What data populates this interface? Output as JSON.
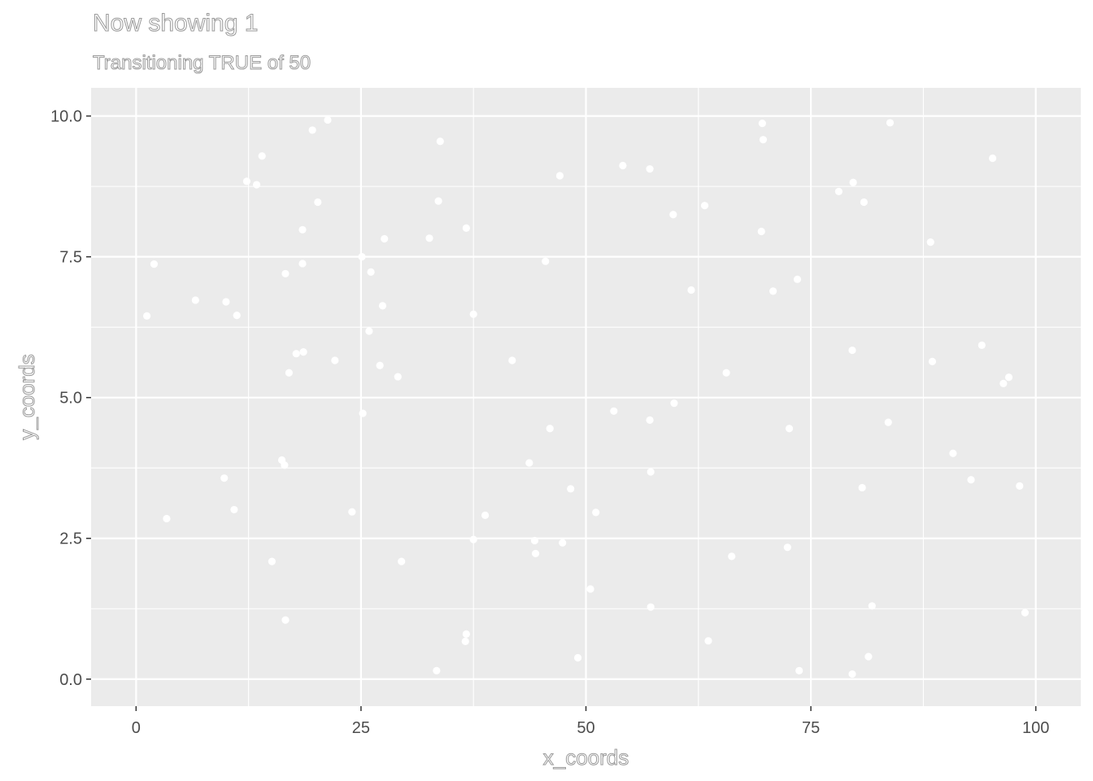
{
  "chart_data": {
    "type": "scatter",
    "title": "Now showing 1",
    "subtitle": "Transitioning TRUE of 50",
    "xlabel": "x_coords",
    "ylabel": "y_coords",
    "xlim": [
      -5,
      105
    ],
    "ylim": [
      -0.48,
      10.5
    ],
    "xticks": [
      0,
      25,
      50,
      75,
      100
    ],
    "xtick_labels": [
      "0",
      "25",
      "50",
      "75",
      "100"
    ],
    "yticks": [
      0,
      2.5,
      5,
      7.5,
      10
    ],
    "ytick_labels": [
      "0.0",
      "2.5",
      "5.0",
      "7.5",
      "10.0"
    ],
    "grid": true,
    "colors": {
      "panel": "#ebebeb",
      "grid": "#ffffff",
      "point": "#ffffff",
      "axis_text": "#4d4d4d"
    },
    "series": [
      {
        "points": [
          [
            1.2,
            6.45
          ],
          [
            2.0,
            7.37
          ],
          [
            3.4,
            2.85
          ],
          [
            6.6,
            6.73
          ],
          [
            9.8,
            3.57
          ],
          [
            10.0,
            6.7
          ],
          [
            10.9,
            3.01
          ],
          [
            11.2,
            6.46
          ],
          [
            12.3,
            8.84
          ],
          [
            13.4,
            8.78
          ],
          [
            14.0,
            9.29
          ],
          [
            15.1,
            2.09
          ],
          [
            16.2,
            3.89
          ],
          [
            16.5,
            3.8
          ],
          [
            16.6,
            7.2
          ],
          [
            16.6,
            1.05
          ],
          [
            17.0,
            5.44
          ],
          [
            17.8,
            5.78
          ],
          [
            18.5,
            7.98
          ],
          [
            18.5,
            7.38
          ],
          [
            18.6,
            5.81
          ],
          [
            19.6,
            9.75
          ],
          [
            20.2,
            8.47
          ],
          [
            21.3,
            9.93
          ],
          [
            22.1,
            5.66
          ],
          [
            24.0,
            2.97
          ],
          [
            25.1,
            7.5
          ],
          [
            25.2,
            4.72
          ],
          [
            25.9,
            6.18
          ],
          [
            26.1,
            7.23
          ],
          [
            27.1,
            5.57
          ],
          [
            27.4,
            6.63
          ],
          [
            27.6,
            7.82
          ],
          [
            29.1,
            5.37
          ],
          [
            29.5,
            2.09
          ],
          [
            32.6,
            7.83
          ],
          [
            33.4,
            0.15
          ],
          [
            33.6,
            8.49
          ],
          [
            33.8,
            9.55
          ],
          [
            36.6,
            0.67
          ],
          [
            36.7,
            0.8
          ],
          [
            36.7,
            8.01
          ],
          [
            37.5,
            6.48
          ],
          [
            37.5,
            2.48
          ],
          [
            38.8,
            2.91
          ],
          [
            41.8,
            5.66
          ],
          [
            43.7,
            3.84
          ],
          [
            44.3,
            2.46
          ],
          [
            44.4,
            2.23
          ],
          [
            45.5,
            7.42
          ],
          [
            46.0,
            4.45
          ],
          [
            47.1,
            8.94
          ],
          [
            47.4,
            2.42
          ],
          [
            48.3,
            3.38
          ],
          [
            49.1,
            0.38
          ],
          [
            50.5,
            1.6
          ],
          [
            51.1,
            2.96
          ],
          [
            53.1,
            4.76
          ],
          [
            54.1,
            9.12
          ],
          [
            57.1,
            9.06
          ],
          [
            57.1,
            4.6
          ],
          [
            57.2,
            3.68
          ],
          [
            57.2,
            1.28
          ],
          [
            59.7,
            8.25
          ],
          [
            59.8,
            4.9
          ],
          [
            61.7,
            6.91
          ],
          [
            63.2,
            8.41
          ],
          [
            63.6,
            0.68
          ],
          [
            65.6,
            5.44
          ],
          [
            66.2,
            2.18
          ],
          [
            69.5,
            7.95
          ],
          [
            69.6,
            9.87
          ],
          [
            69.7,
            9.58
          ],
          [
            70.8,
            6.89
          ],
          [
            72.4,
            2.34
          ],
          [
            72.6,
            4.45
          ],
          [
            73.5,
            7.1
          ],
          [
            73.7,
            0.15
          ],
          [
            78.1,
            8.66
          ],
          [
            79.6,
            5.84
          ],
          [
            79.6,
            0.09
          ],
          [
            79.7,
            8.82
          ],
          [
            80.7,
            3.4
          ],
          [
            80.9,
            8.47
          ],
          [
            81.4,
            0.4
          ],
          [
            81.8,
            1.3
          ],
          [
            83.6,
            4.56
          ],
          [
            83.8,
            9.88
          ],
          [
            88.3,
            7.76
          ],
          [
            88.5,
            5.64
          ],
          [
            90.8,
            4.01
          ],
          [
            92.8,
            3.54
          ],
          [
            94.0,
            5.93
          ],
          [
            95.2,
            9.25
          ],
          [
            96.4,
            5.25
          ],
          [
            97.0,
            5.36
          ],
          [
            98.2,
            3.43
          ],
          [
            98.8,
            1.18
          ]
        ]
      }
    ]
  }
}
